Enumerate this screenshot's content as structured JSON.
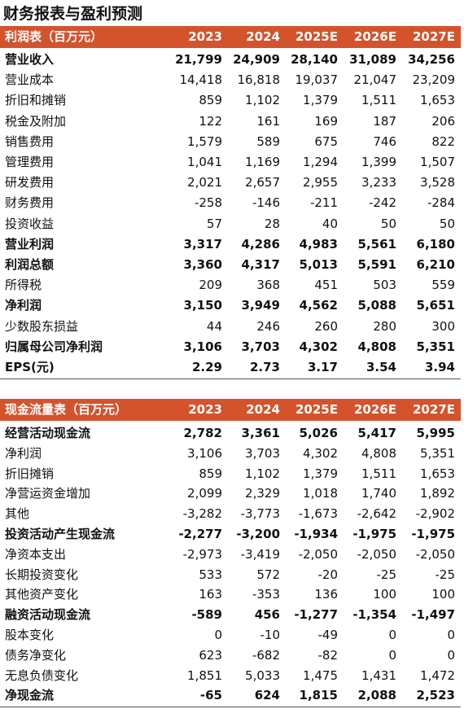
{
  "title": "财务报表与盈利预测",
  "tables": [
    {
      "header": [
        "利润表（百万元）",
        "2023",
        "2024",
        "2025E",
        "2026E",
        "2027E"
      ],
      "rows": [
        [
          "营业收入",
          "21,799",
          "24,909",
          "28,140",
          "31,089",
          "34,256"
        ],
        [
          "营业成本",
          "14,418",
          "16,818",
          "19,037",
          "21,047",
          "23,209"
        ],
        [
          "折旧和摊销",
          "859",
          "1,102",
          "1,379",
          "1,511",
          "1,653"
        ],
        [
          "税金及附加",
          "122",
          "161",
          "169",
          "187",
          "206"
        ],
        [
          "销售费用",
          "1,579",
          "589",
          "675",
          "746",
          "822"
        ],
        [
          "管理费用",
          "1,041",
          "1,169",
          "1,294",
          "1,399",
          "1,507"
        ],
        [
          "研发费用",
          "2,021",
          "2,657",
          "2,955",
          "3,233",
          "3,528"
        ],
        [
          "财务费用",
          "-258",
          "-146",
          "-211",
          "-242",
          "-284"
        ],
        [
          "投资收益",
          "57",
          "28",
          "40",
          "50",
          "50"
        ],
        [
          "营业利润",
          "3,317",
          "4,286",
          "4,983",
          "5,561",
          "6,180"
        ],
        [
          "利润总额",
          "3,360",
          "4,317",
          "5,013",
          "5,591",
          "6,210"
        ],
        [
          "所得税",
          "209",
          "368",
          "451",
          "503",
          "559"
        ],
        [
          "净利润",
          "3,150",
          "3,949",
          "4,562",
          "5,088",
          "5,651"
        ],
        [
          "少数股东损益",
          "44",
          "246",
          "260",
          "280",
          "300"
        ],
        [
          "归属母公司净利润",
          "3,106",
          "3,703",
          "4,302",
          "4,808",
          "5,351"
        ],
        [
          "EPS(元)",
          "2.29",
          "2.73",
          "3.17",
          "3.54",
          "3.94"
        ]
      ]
    },
    {
      "header": [
        "现金流量表（百万元）",
        "2023",
        "2024",
        "2025E",
        "2026E",
        "2027E"
      ],
      "rows": [
        [
          "经营活动现金流",
          "2,782",
          "3,361",
          "5,026",
          "5,417",
          "5,995"
        ],
        [
          "净利润",
          "3,106",
          "3,703",
          "4,302",
          "4,808",
          "5,351"
        ],
        [
          "折旧摊销",
          "859",
          "1,102",
          "1,379",
          "1,511",
          "1,653"
        ],
        [
          "净营运资金增加",
          "2,099",
          "2,329",
          "1,018",
          "1,740",
          "1,892"
        ],
        [
          "其他",
          "-3,282",
          "-3,773",
          "-1,673",
          "-2,642",
          "-2,902"
        ],
        [
          "投资活动产生现金流",
          "-2,277",
          "-3,200",
          "-1,934",
          "-1,975",
          "-1,975"
        ],
        [
          "净资本支出",
          "-2,973",
          "-3,419",
          "-2,050",
          "-2,050",
          "-2,050"
        ],
        [
          "长期投资变化",
          "533",
          "572",
          "-20",
          "-25",
          "-25"
        ],
        [
          "其他资产变化",
          "163",
          "-353",
          "136",
          "100",
          "100"
        ],
        [
          "融资活动现金流",
          "-589",
          "456",
          "-1,277",
          "-1,354",
          "-1,497"
        ],
        [
          "股本变化",
          "0",
          "-10",
          "-49",
          "0",
          "0"
        ],
        [
          "债务净变化",
          "623",
          "-682",
          "-82",
          "0",
          "0"
        ],
        [
          "无息负债变化",
          "1,851",
          "5,033",
          "1,475",
          "1,431",
          "1,472"
        ],
        [
          "净现金流",
          "-65",
          "624",
          "1,815",
          "2,088",
          "2,523"
        ]
      ]
    }
  ]
}
